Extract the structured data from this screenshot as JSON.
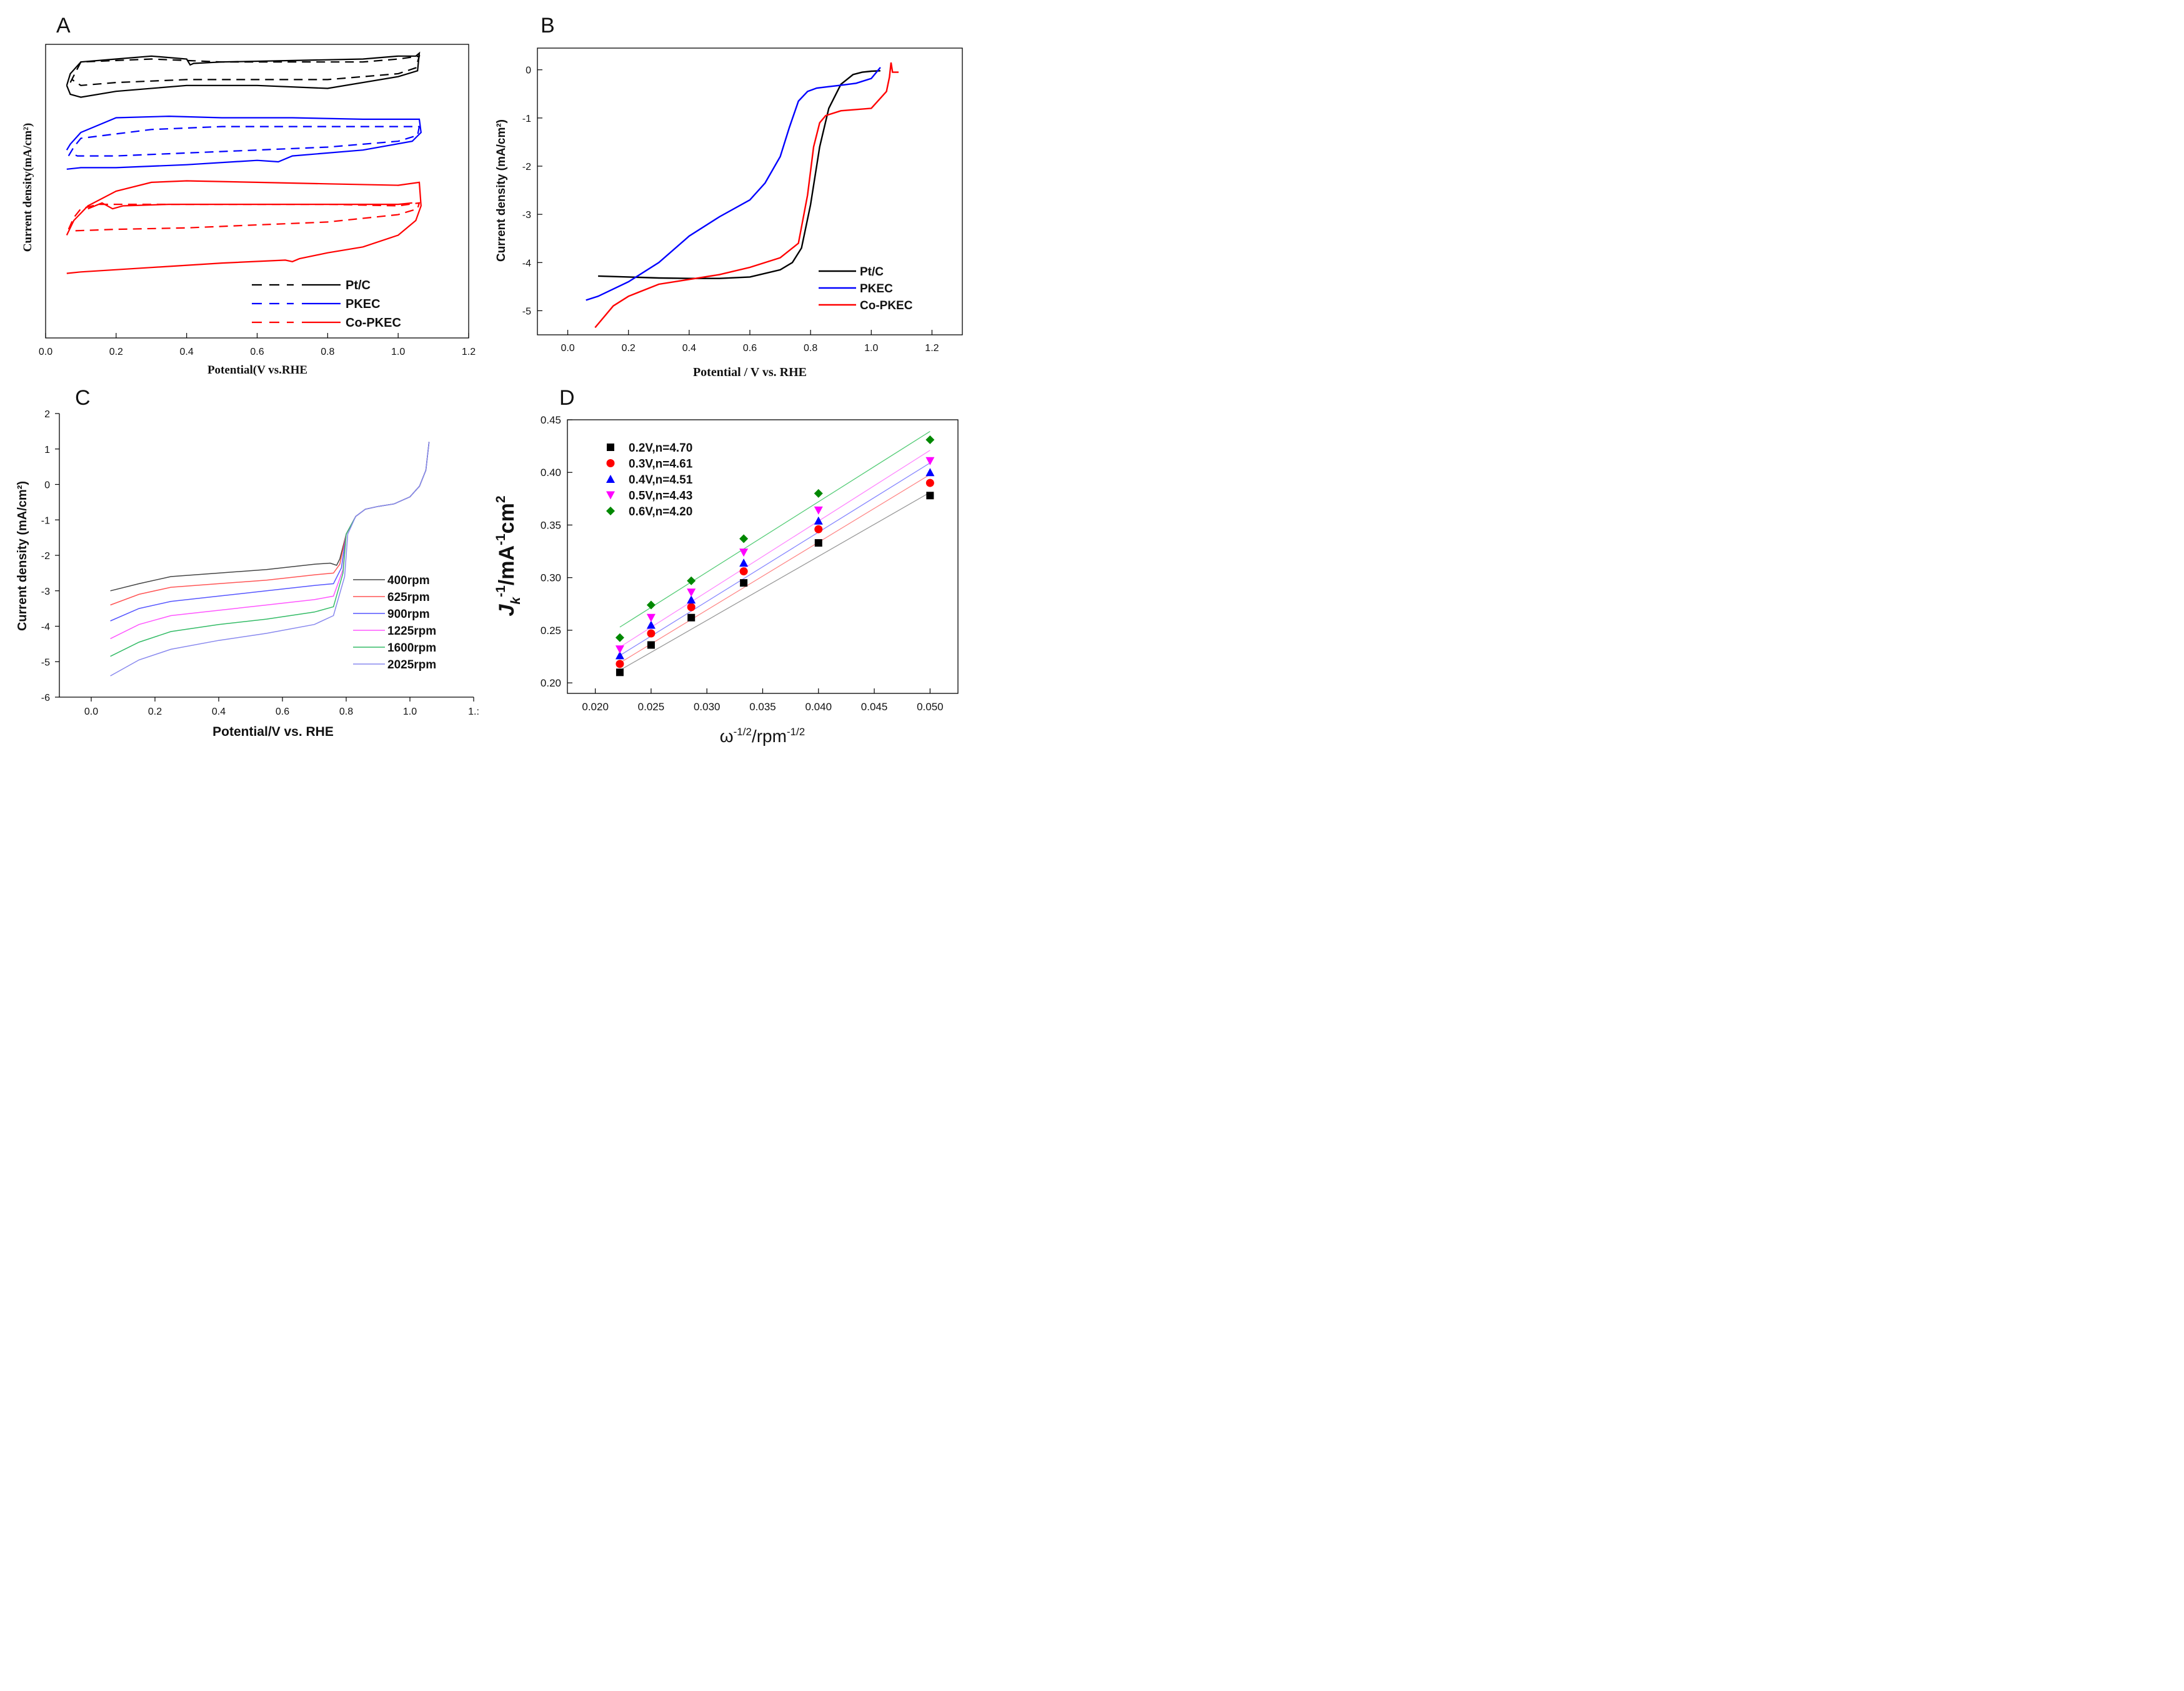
{
  "chart_data": [
    {
      "panel": "A",
      "type": "line",
      "title": "",
      "xlabel": "Potential(V vs.RHE",
      "ylabel": "Current density(mA/cm²)",
      "xlim": [
        0.0,
        1.2
      ],
      "xticks": [
        "0.0",
        "0.2",
        "0.4",
        "0.6",
        "0.8",
        "1.0",
        "1.2"
      ],
      "yticks": [],
      "ylim": [
        0,
        100
      ],
      "value_note": "Arbitrary stacked offset units; y axis has no tick labels",
      "legend_position": "bottom-right",
      "series": [
        {
          "name": "Pt/C",
          "style": "solid",
          "color": "#000000",
          "x": [
            0.06,
            0.07,
            0.1,
            0.2,
            0.3,
            0.4,
            0.41,
            0.42,
            0.5,
            0.7,
            0.9,
            1.0,
            1.05,
            1.06,
            1.055,
            1.0,
            0.8,
            0.6,
            0.4,
            0.2,
            0.1,
            0.07,
            0.06
          ],
          "y": [
            86,
            90,
            94,
            95,
            96,
            95,
            93,
            93.5,
            94,
            94.5,
            95,
            96,
            96,
            97,
            91,
            89,
            85,
            86,
            86,
            84,
            82,
            83,
            86
          ]
        },
        {
          "name": "Pt/C",
          "style": "dashed",
          "color": "#000000",
          "x": [
            0.07,
            0.1,
            0.3,
            0.5,
            0.7,
            0.9,
            1.0,
            1.06,
            1.05,
            1.0,
            0.8,
            0.6,
            0.4,
            0.2,
            0.1,
            0.075
          ],
          "y": [
            87,
            94,
            95,
            94,
            94,
            94,
            95,
            96,
            92,
            90,
            88,
            88,
            88,
            87,
            86,
            88
          ]
        },
        {
          "name": "PKEC",
          "style": "solid",
          "color": "#0000ff",
          "x": [
            0.06,
            0.07,
            0.1,
            0.2,
            0.35,
            0.5,
            0.7,
            0.9,
            1.0,
            1.06,
            1.065,
            1.04,
            0.9,
            0.7,
            0.66,
            0.6,
            0.4,
            0.2,
            0.1,
            0.06
          ],
          "y": [
            64,
            66,
            70,
            75,
            75.5,
            75,
            75,
            74.5,
            74.5,
            74.5,
            70,
            67,
            64,
            62,
            60,
            60.5,
            59,
            58,
            58,
            57.5
          ]
        },
        {
          "name": "PKEC",
          "style": "dashed",
          "color": "#0000ff",
          "x": [
            0.065,
            0.08,
            0.1,
            0.3,
            0.5,
            0.7,
            0.9,
            1.0,
            1.06,
            1.055,
            1.0,
            0.8,
            0.6,
            0.4,
            0.2,
            0.09,
            0.07
          ],
          "y": [
            62,
            65,
            68,
            71,
            72,
            72,
            72,
            72,
            72,
            69,
            67,
            65,
            64,
            63,
            62,
            62,
            63
          ]
        },
        {
          "name": "Co-PKEC",
          "style": "solid",
          "color": "#ff0000",
          "x": [
            0.06,
            0.08,
            0.12,
            0.2,
            0.3,
            0.4,
            0.6,
            0.8,
            1.0,
            1.06,
            1.065,
            1.05,
            1.0,
            0.9,
            0.8,
            0.72,
            0.7,
            0.68,
            0.5,
            0.3,
            0.1,
            0.06
          ],
          "y": [
            35,
            40,
            45,
            50,
            53,
            53.5,
            53,
            52.5,
            52,
            53,
            45,
            40,
            35,
            31,
            29,
            27,
            26,
            26.5,
            25.5,
            24,
            22.5,
            22
          ]
        },
        {
          "name": "Co-PKEC",
          "style": "solid-inner",
          "color": "#ff0000",
          "x": [
            0.12,
            0.16,
            0.19,
            0.22,
            0.35,
            0.6,
            0.9,
            1.0,
            1.04
          ],
          "y": [
            44,
            46,
            44,
            45,
            45.5,
            45.5,
            45.5,
            45.5,
            46
          ]
        },
        {
          "name": "Co-PKEC",
          "style": "dashed",
          "color": "#ff0000",
          "x": [
            0.065,
            0.08,
            0.1,
            0.15,
            0.4,
            0.6,
            0.8,
            1.0,
            1.06,
            1.055,
            1.0,
            0.8,
            0.6,
            0.4,
            0.2,
            0.08
          ],
          "y": [
            37,
            41,
            44,
            45.5,
            45.5,
            45.5,
            45.5,
            45,
            46,
            44,
            42,
            39.5,
            38.5,
            37.5,
            37,
            36.5
          ]
        }
      ]
    },
    {
      "panel": "B",
      "type": "line",
      "title": "",
      "xlabel": "Potential / V vs. RHE",
      "ylabel": "Current density (mA/cm²)",
      "xlim": [
        -0.1,
        1.3
      ],
      "ylim": [
        -5.5,
        0.45
      ],
      "xticks": [
        "0.0",
        "0.2",
        "0.4",
        "0.6",
        "0.8",
        "1.0",
        "1.2"
      ],
      "yticks": [
        "0",
        "-1",
        "-2",
        "-3",
        "-4",
        "-5"
      ],
      "legend_position": "bottom-right",
      "series": [
        {
          "name": "Pt/C",
          "color": "#000000",
          "x": [
            0.1,
            0.2,
            0.3,
            0.4,
            0.5,
            0.6,
            0.7,
            0.74,
            0.77,
            0.8,
            0.83,
            0.86,
            0.9,
            0.94,
            0.97,
            1.0,
            1.03
          ],
          "y": [
            -4.28,
            -4.3,
            -4.32,
            -4.33,
            -4.33,
            -4.3,
            -4.15,
            -4.0,
            -3.7,
            -2.8,
            -1.6,
            -0.8,
            -0.3,
            -0.1,
            -0.05,
            -0.03,
            -0.02
          ]
        },
        {
          "name": "PKEC",
          "color": "#0000ff",
          "x": [
            0.06,
            0.1,
            0.2,
            0.3,
            0.4,
            0.5,
            0.6,
            0.65,
            0.7,
            0.73,
            0.76,
            0.79,
            0.82,
            0.86,
            0.9,
            0.95,
            1.0,
            1.03
          ],
          "y": [
            -4.78,
            -4.7,
            -4.4,
            -4.0,
            -3.45,
            -3.05,
            -2.7,
            -2.35,
            -1.8,
            -1.2,
            -0.65,
            -0.45,
            -0.38,
            -0.35,
            -0.32,
            -0.28,
            -0.18,
            0.05
          ]
        },
        {
          "name": "Co-PKEC",
          "color": "#ff0000",
          "x": [
            0.09,
            0.15,
            0.2,
            0.3,
            0.4,
            0.5,
            0.6,
            0.7,
            0.76,
            0.79,
            0.81,
            0.83,
            0.85,
            0.9,
            1.0,
            1.05,
            1.06,
            1.065,
            1.07,
            1.09
          ],
          "y": [
            -5.35,
            -4.9,
            -4.7,
            -4.45,
            -4.35,
            -4.25,
            -4.1,
            -3.9,
            -3.6,
            -2.6,
            -1.6,
            -1.1,
            -0.95,
            -0.85,
            -0.8,
            -0.45,
            -0.15,
            0.15,
            -0.05,
            -0.05
          ]
        }
      ]
    },
    {
      "panel": "C",
      "type": "line",
      "title": "",
      "xlabel": "Potential/V vs. RHE",
      "ylabel": "Current density (mA/cm²)",
      "xlim": [
        -0.1,
        1.2
      ],
      "ylim": [
        -6,
        2
      ],
      "xticks": [
        "0.0",
        "0.2",
        "0.4",
        "0.6",
        "0.8",
        "1.0",
        "1.:"
      ],
      "yticks": [
        "2",
        "1",
        "0",
        "-1",
        "-2",
        "-3",
        "-4",
        "-5",
        "-6"
      ],
      "legend_position": "right",
      "series": [
        {
          "name": "400rpm",
          "color": "#444444",
          "x": [
            0.06,
            0.15,
            0.25,
            0.4,
            0.55,
            0.7,
            0.75,
            0.77,
            0.78,
            0.8,
            0.83,
            0.86,
            0.9,
            0.95,
            1.0,
            1.03,
            1.05,
            1.06
          ],
          "y": [
            -3.0,
            -2.8,
            -2.6,
            -2.5,
            -2.4,
            -2.25,
            -2.22,
            -2.28,
            -2.1,
            -1.4,
            -0.9,
            -0.7,
            -0.62,
            -0.55,
            -0.35,
            -0.05,
            0.4,
            1.2
          ]
        },
        {
          "name": "625rpm",
          "color": "#ff5555",
          "x": [
            0.06,
            0.15,
            0.25,
            0.4,
            0.55,
            0.7,
            0.76,
            0.78,
            0.8,
            0.83,
            0.86,
            0.9,
            0.95,
            1.0,
            1.03,
            1.05,
            1.06
          ],
          "y": [
            -3.4,
            -3.1,
            -2.9,
            -2.8,
            -2.7,
            -2.55,
            -2.5,
            -2.25,
            -1.4,
            -0.9,
            -0.7,
            -0.62,
            -0.55,
            -0.35,
            -0.05,
            0.4,
            1.2
          ]
        },
        {
          "name": "900rpm",
          "color": "#5555ff",
          "x": [
            0.06,
            0.15,
            0.25,
            0.4,
            0.55,
            0.7,
            0.76,
            0.785,
            0.8,
            0.83,
            0.86,
            0.9,
            0.95,
            1.0,
            1.03,
            1.05,
            1.06
          ],
          "y": [
            -3.85,
            -3.5,
            -3.3,
            -3.15,
            -3.0,
            -2.85,
            -2.8,
            -2.35,
            -1.4,
            -0.9,
            -0.7,
            -0.62,
            -0.55,
            -0.35,
            -0.05,
            0.4,
            1.2
          ]
        },
        {
          "name": "1225rpm",
          "color": "#ff55ff",
          "x": [
            0.06,
            0.15,
            0.25,
            0.4,
            0.55,
            0.7,
            0.76,
            0.79,
            0.8,
            0.83,
            0.86,
            0.9,
            0.95,
            1.0,
            1.03,
            1.05,
            1.06
          ],
          "y": [
            -4.35,
            -3.95,
            -3.7,
            -3.55,
            -3.4,
            -3.25,
            -3.15,
            -2.4,
            -1.4,
            -0.9,
            -0.7,
            -0.62,
            -0.55,
            -0.35,
            -0.05,
            0.4,
            1.2
          ]
        },
        {
          "name": "1600rpm",
          "color": "#33bb66",
          "x": [
            0.06,
            0.15,
            0.25,
            0.4,
            0.55,
            0.7,
            0.76,
            0.79,
            0.8,
            0.83,
            0.86,
            0.9,
            0.95,
            1.0,
            1.03,
            1.05,
            1.06
          ],
          "y": [
            -4.85,
            -4.45,
            -4.15,
            -3.95,
            -3.8,
            -3.6,
            -3.45,
            -2.5,
            -1.4,
            -0.9,
            -0.7,
            -0.62,
            -0.55,
            -0.35,
            -0.05,
            0.4,
            1.2
          ]
        },
        {
          "name": "2025rpm",
          "color": "#8888ee",
          "x": [
            0.06,
            0.15,
            0.25,
            0.4,
            0.55,
            0.7,
            0.76,
            0.795,
            0.805,
            0.83,
            0.86,
            0.9,
            0.95,
            1.0,
            1.03,
            1.05,
            1.06
          ],
          "y": [
            -5.4,
            -4.95,
            -4.65,
            -4.4,
            -4.2,
            -3.95,
            -3.7,
            -2.6,
            -1.4,
            -0.9,
            -0.7,
            -0.62,
            -0.55,
            -0.35,
            -0.05,
            0.4,
            1.2
          ]
        }
      ]
    },
    {
      "panel": "D",
      "type": "scatter",
      "title": "",
      "xlabel": "ω-1/2/rpm-1/2",
      "ylabel": "Jk-1/mA-1cm2",
      "xlabel_parts": {
        "base": "ω",
        "sup1": "-1/2",
        "mid": "/rpm",
        "sup2": "-1/2"
      },
      "ylabel_parts": {
        "base": "J",
        "sub": "k",
        "sup1": "-1",
        "mid": "/mA",
        "sup2": "-1",
        "tail": "cm",
        "sup3": "2"
      },
      "xlim": [
        0.0175,
        0.0525
      ],
      "ylim": [
        0.19,
        0.45
      ],
      "xticks": [
        "0.020",
        "0.025",
        "0.030",
        "0.035",
        "0.040",
        "0.045",
        "0.050"
      ],
      "yticks": [
        "0.45",
        "0.40",
        "0.35",
        "0.30",
        "0.25",
        "0.20"
      ],
      "legend_position": "top-left",
      "x": [
        0.0222,
        0.025,
        0.0286,
        0.0333,
        0.04,
        0.05
      ],
      "series": [
        {
          "name": "0.2V,n=4.70",
          "marker": "square",
          "color": "#000000",
          "line_color": "#999999",
          "values": [
            0.21,
            0.236,
            0.262,
            0.295,
            0.333,
            0.378
          ],
          "fit": [
            0.212,
            0.381
          ]
        },
        {
          "name": "0.3V,n=4.61",
          "marker": "circle",
          "color": "#ff0000",
          "line_color": "#ff8888",
          "values": [
            0.218,
            0.247,
            0.272,
            0.306,
            0.346,
            0.39
          ],
          "fit": [
            0.219,
            0.398
          ]
        },
        {
          "name": "0.4V,n=4.51",
          "marker": "triangle-up",
          "color": "#0000ff",
          "line_color": "#8888ff",
          "values": [
            0.226,
            0.255,
            0.279,
            0.314,
            0.354,
            0.4
          ],
          "fit": [
            0.226,
            0.409
          ]
        },
        {
          "name": "0.5V,n=4.43",
          "marker": "triangle-down",
          "color": "#ff00ff",
          "line_color": "#ff88ff",
          "values": [
            0.232,
            0.262,
            0.286,
            0.324,
            0.364,
            0.411
          ],
          "fit": [
            0.234,
            0.421
          ]
        },
        {
          "name": "0.6V,n=4.20",
          "marker": "diamond",
          "color": "#008800",
          "line_color": "#55cc77",
          "values": [
            0.243,
            0.274,
            0.297,
            0.337,
            0.38,
            0.431
          ],
          "fit": [
            0.253,
            0.439
          ]
        }
      ]
    }
  ],
  "panels": {
    "A": {
      "letter": "A"
    },
    "B": {
      "letter": "B"
    },
    "C": {
      "letter": "C"
    },
    "D": {
      "letter": "D"
    }
  }
}
